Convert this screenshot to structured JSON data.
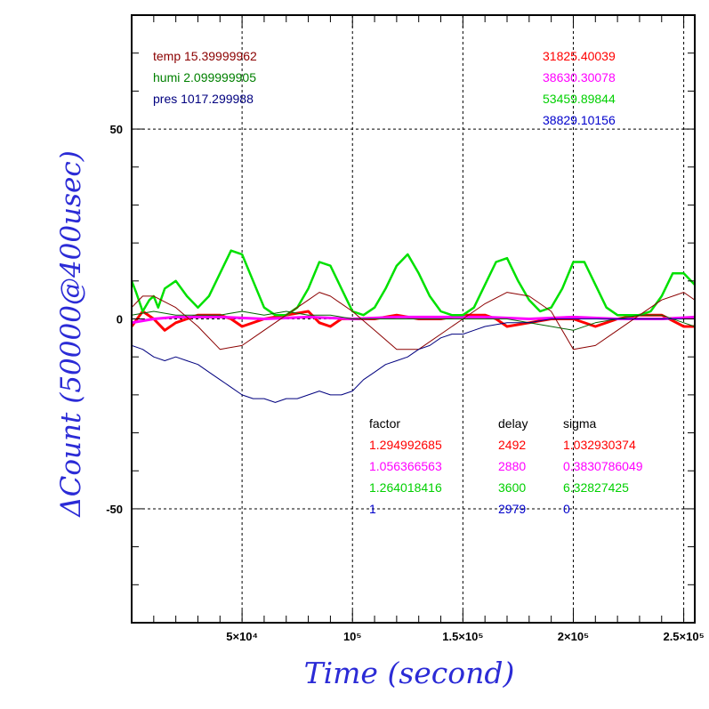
{
  "chart_data": {
    "type": "line",
    "xlabel": "Time (second)",
    "ylabel": "ΔCount (50000@400usec)",
    "xlim": [
      0,
      255000
    ],
    "ylim": [
      -80,
      80
    ],
    "grid": true,
    "x_ticks": [
      {
        "value": 50000,
        "label": "5×10⁴"
      },
      {
        "value": 100000,
        "label": "10⁵"
      },
      {
        "value": 150000,
        "label": "1.5×10⁵"
      },
      {
        "value": 200000,
        "label": "2×10⁵"
      },
      {
        "value": 250000,
        "label": "2.5×10⁵"
      }
    ],
    "y_ticks": [
      {
        "value": 50,
        "label": "50"
      },
      {
        "value": 0,
        "label": "0"
      },
      {
        "value": -50,
        "label": "-50"
      }
    ],
    "env_annotations": [
      {
        "text": "temp 15.39999962",
        "color": "#8b0000"
      },
      {
        "text": "humi 2.099999905",
        "color": "#008000"
      },
      {
        "text": "pres 1017.299988",
        "color": "#00007f"
      }
    ],
    "mean_annotations": [
      {
        "text": "31825.40039",
        "color": "#ff0000"
      },
      {
        "text": "38630.30078",
        "color": "#ff00ff"
      },
      {
        "text": "53459.89844",
        "color": "#00d000"
      },
      {
        "text": "38829.10156",
        "color": "#0000cc"
      }
    ],
    "table": {
      "headers": [
        "factor",
        "delay",
        "sigma"
      ],
      "rows": [
        {
          "factor": "1.294992685",
          "delay": "2492",
          "sigma": "1.032930374",
          "color": "#ff0000"
        },
        {
          "factor": "1.056366563",
          "delay": "2880",
          "sigma": "0.3830786049",
          "color": "#ff00ff"
        },
        {
          "factor": "1.264018416",
          "delay": "3600",
          "sigma": "6.32827425",
          "color": "#00d000"
        },
        {
          "factor": "1",
          "delay": "2979",
          "sigma": "0",
          "color": "#0000cc"
        }
      ]
    },
    "series": [
      {
        "color": "#ff0000",
        "width": 3,
        "x": [
          0,
          5000,
          10000,
          15000,
          20000,
          25000,
          30000,
          40000,
          45000,
          50000,
          60000,
          70000,
          80000,
          85000,
          90000,
          95000,
          100000,
          110000,
          120000,
          130000,
          140000,
          150000,
          160000,
          165000,
          170000,
          180000,
          190000,
          200000,
          210000,
          220000,
          230000,
          240000,
          250000,
          255000
        ],
        "y": [
          -2,
          2,
          0,
          -3,
          -1,
          0,
          1,
          1,
          0,
          -2,
          0,
          1,
          2,
          -1,
          -2,
          0,
          0,
          0,
          1,
          0,
          0,
          1,
          1,
          0,
          -2,
          -1,
          0,
          0,
          -2,
          0,
          1,
          1,
          -2,
          -2
        ]
      },
      {
        "color": "#ff00ff",
        "width": 3,
        "x": [
          0,
          10000,
          20000,
          40000,
          60000,
          80000,
          100000,
          120000,
          140000,
          160000,
          180000,
          200000,
          220000,
          240000,
          255000
        ],
        "y": [
          -1,
          0,
          0.5,
          0.5,
          0,
          0.5,
          0,
          0.5,
          0.5,
          0.5,
          0,
          0.5,
          0,
          0,
          0.5
        ]
      },
      {
        "color": "#00e000",
        "width": 2.5,
        "x": [
          0,
          2000,
          5000,
          8000,
          10000,
          12000,
          15000,
          20000,
          25000,
          30000,
          35000,
          40000,
          45000,
          50000,
          55000,
          60000,
          65000,
          70000,
          75000,
          80000,
          85000,
          90000,
          95000,
          100000,
          105000,
          110000,
          115000,
          120000,
          125000,
          130000,
          135000,
          140000,
          145000,
          150000,
          155000,
          160000,
          165000,
          170000,
          175000,
          180000,
          185000,
          190000,
          195000,
          200000,
          205000,
          210000,
          215000,
          220000,
          225000,
          230000,
          235000,
          240000,
          245000,
          250000,
          255000
        ],
        "y": [
          10,
          7,
          2,
          5,
          6,
          3,
          8,
          10,
          6,
          3,
          6,
          12,
          18,
          17,
          10,
          3,
          1,
          1,
          3,
          8,
          15,
          14,
          8,
          2,
          1,
          3,
          8,
          14,
          17,
          12,
          6,
          2,
          1,
          1,
          3,
          9,
          15,
          16,
          10,
          5,
          2,
          3,
          8,
          15,
          15,
          9,
          3,
          1,
          1,
          1,
          2,
          6,
          12,
          12,
          9
        ]
      },
      {
        "color": "#8b0000",
        "width": 1,
        "x": [
          0,
          5000,
          10000,
          20000,
          30000,
          40000,
          50000,
          60000,
          70000,
          80000,
          85000,
          90000,
          100000,
          110000,
          120000,
          130000,
          140000,
          150000,
          160000,
          170000,
          180000,
          190000,
          200000,
          210000,
          220000,
          230000,
          240000,
          250000,
          255000
        ],
        "y": [
          3,
          6,
          6,
          3,
          -2,
          -8,
          -7,
          -3,
          1,
          5,
          7,
          6,
          2,
          -3,
          -8,
          -8,
          -4,
          0,
          4,
          7,
          6,
          2,
          -8,
          -7,
          -3,
          1,
          5,
          7,
          5
        ]
      },
      {
        "color": "#006400",
        "width": 1,
        "x": [
          0,
          10000,
          20000,
          30000,
          40000,
          50000,
          60000,
          70000,
          80000,
          90000,
          100000,
          110000,
          120000,
          130000,
          140000,
          150000,
          160000,
          170000,
          180000,
          190000,
          200000,
          210000,
          220000,
          230000,
          240000,
          250000,
          255000
        ],
        "y": [
          1,
          2,
          1,
          1,
          1,
          2,
          1,
          2,
          1,
          1,
          0,
          0,
          0,
          0,
          0,
          0,
          0,
          0,
          -1,
          -2,
          -3,
          -1,
          0,
          1,
          1,
          -1,
          -2
        ]
      },
      {
        "color": "#00007f",
        "width": 1,
        "x": [
          0,
          5000,
          10000,
          15000,
          20000,
          25000,
          30000,
          35000,
          40000,
          45000,
          50000,
          55000,
          60000,
          65000,
          70000,
          75000,
          80000,
          85000,
          90000,
          95000,
          100000,
          105000,
          110000,
          115000,
          120000,
          125000,
          130000,
          135000,
          140000,
          145000,
          150000,
          155000,
          160000,
          170000,
          180000,
          190000,
          200000,
          210000,
          220000,
          230000,
          240000,
          250000,
          255000
        ],
        "y": [
          -7,
          -8,
          -10,
          -11,
          -10,
          -11,
          -12,
          -14,
          -16,
          -18,
          -20,
          -21,
          -21,
          -22,
          -21,
          -21,
          -20,
          -19,
          -20,
          -20,
          -19,
          -16,
          -14,
          -12,
          -11,
          -10,
          -8,
          -7,
          -5,
          -4,
          -4,
          -3,
          -2,
          -1,
          -1,
          0,
          0,
          0,
          0,
          0,
          0,
          0,
          0
        ]
      }
    ]
  }
}
